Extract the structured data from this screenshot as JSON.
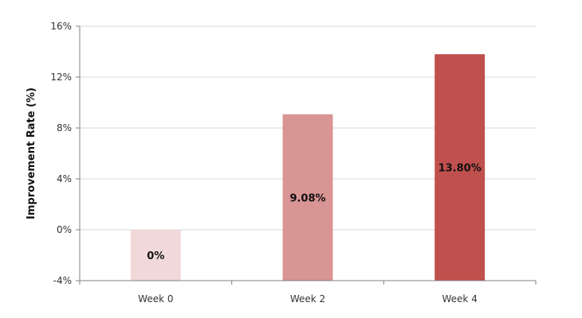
{
  "chart_data": {
    "type": "bar",
    "categories": [
      "Week 0",
      "Week 2",
      "Week 4"
    ],
    "values": [
      0,
      9.08,
      13.8
    ],
    "data_labels": [
      "0%",
      "9.08%",
      "13.80%"
    ],
    "bar_colors": [
      "#f2d9d9",
      "#d99594",
      "#c0504d"
    ],
    "title": "",
    "xlabel": "",
    "ylabel": "Improvement Rate (%)",
    "ylim": [
      -4,
      16
    ],
    "yticks": [
      -4,
      0,
      4,
      8,
      12,
      16
    ],
    "ytick_labels": [
      "-4%",
      "0%",
      "4%",
      "8%",
      "12%",
      "16%"
    ],
    "grid": true,
    "legend": "none"
  }
}
